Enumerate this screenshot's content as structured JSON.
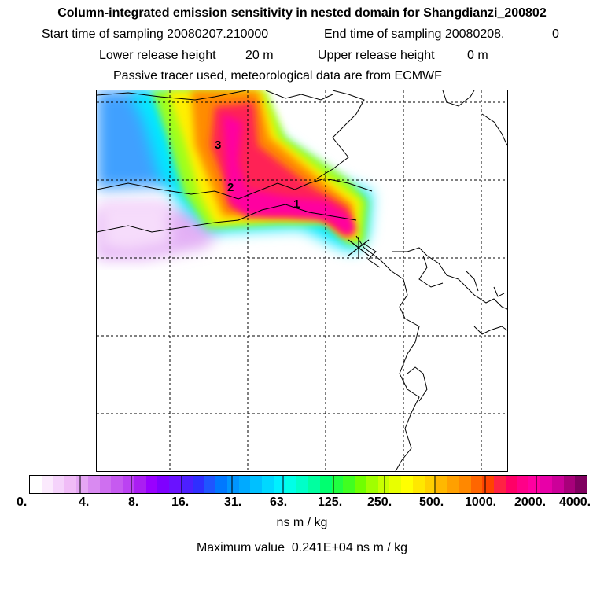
{
  "header": {
    "title": "Column-integrated emission sensitivity in nested domain for Shangdianzi_200802",
    "start_label": "Start time of sampling 20080207.210000",
    "end_label": "End time of sampling 20080208.",
    "end_value": "0",
    "lower_label": "Lower release height",
    "lower_value": "20 m",
    "upper_label": "Upper release height",
    "upper_value": "0 m",
    "tracer_line": "Passive tracer used, meteorological data are from ECMWF"
  },
  "map": {
    "markers": [
      "1",
      "2",
      "3"
    ],
    "release_site_icon": "star-marker-icon",
    "grid_style": "dashed"
  },
  "colorbar": {
    "ticks": [
      "0.",
      "4.",
      "8.",
      "16.",
      "31.",
      "63.",
      "125.",
      "250.",
      "500.",
      "1000.",
      "2000.",
      "4000."
    ],
    "colors": [
      "#ffffff",
      "#fbeafd",
      "#f5d3fb",
      "#f0bcf7",
      "#e5a6f4",
      "#d98af1",
      "#cf6ff0",
      "#c65af0",
      "#bb42f2",
      "#aa1ef2",
      "#9900ff",
      "#7f00ff",
      "#6a12ff",
      "#4d1fff",
      "#2f2fff",
      "#1f55ff",
      "#0078ff",
      "#0095ff",
      "#00aaff",
      "#00c0ff",
      "#00d8ff",
      "#00f0ff",
      "#00ffe8",
      "#00ffc8",
      "#00ffa0",
      "#00ff70",
      "#20ff40",
      "#40ff20",
      "#70ff00",
      "#a0ff00",
      "#c8ff00",
      "#e8ff00",
      "#ffff00",
      "#ffe800",
      "#ffd000",
      "#ffb800",
      "#ffa000",
      "#ff8800",
      "#ff6600",
      "#ff4400",
      "#ff2244",
      "#ff0066",
      "#ff0088",
      "#ff00a0",
      "#e800a8",
      "#cc0099",
      "#a8007a",
      "#800060"
    ],
    "units": "ns m / kg",
    "max_label": "Maximum value",
    "max_value": "0.241E+04 ns m / kg"
  }
}
